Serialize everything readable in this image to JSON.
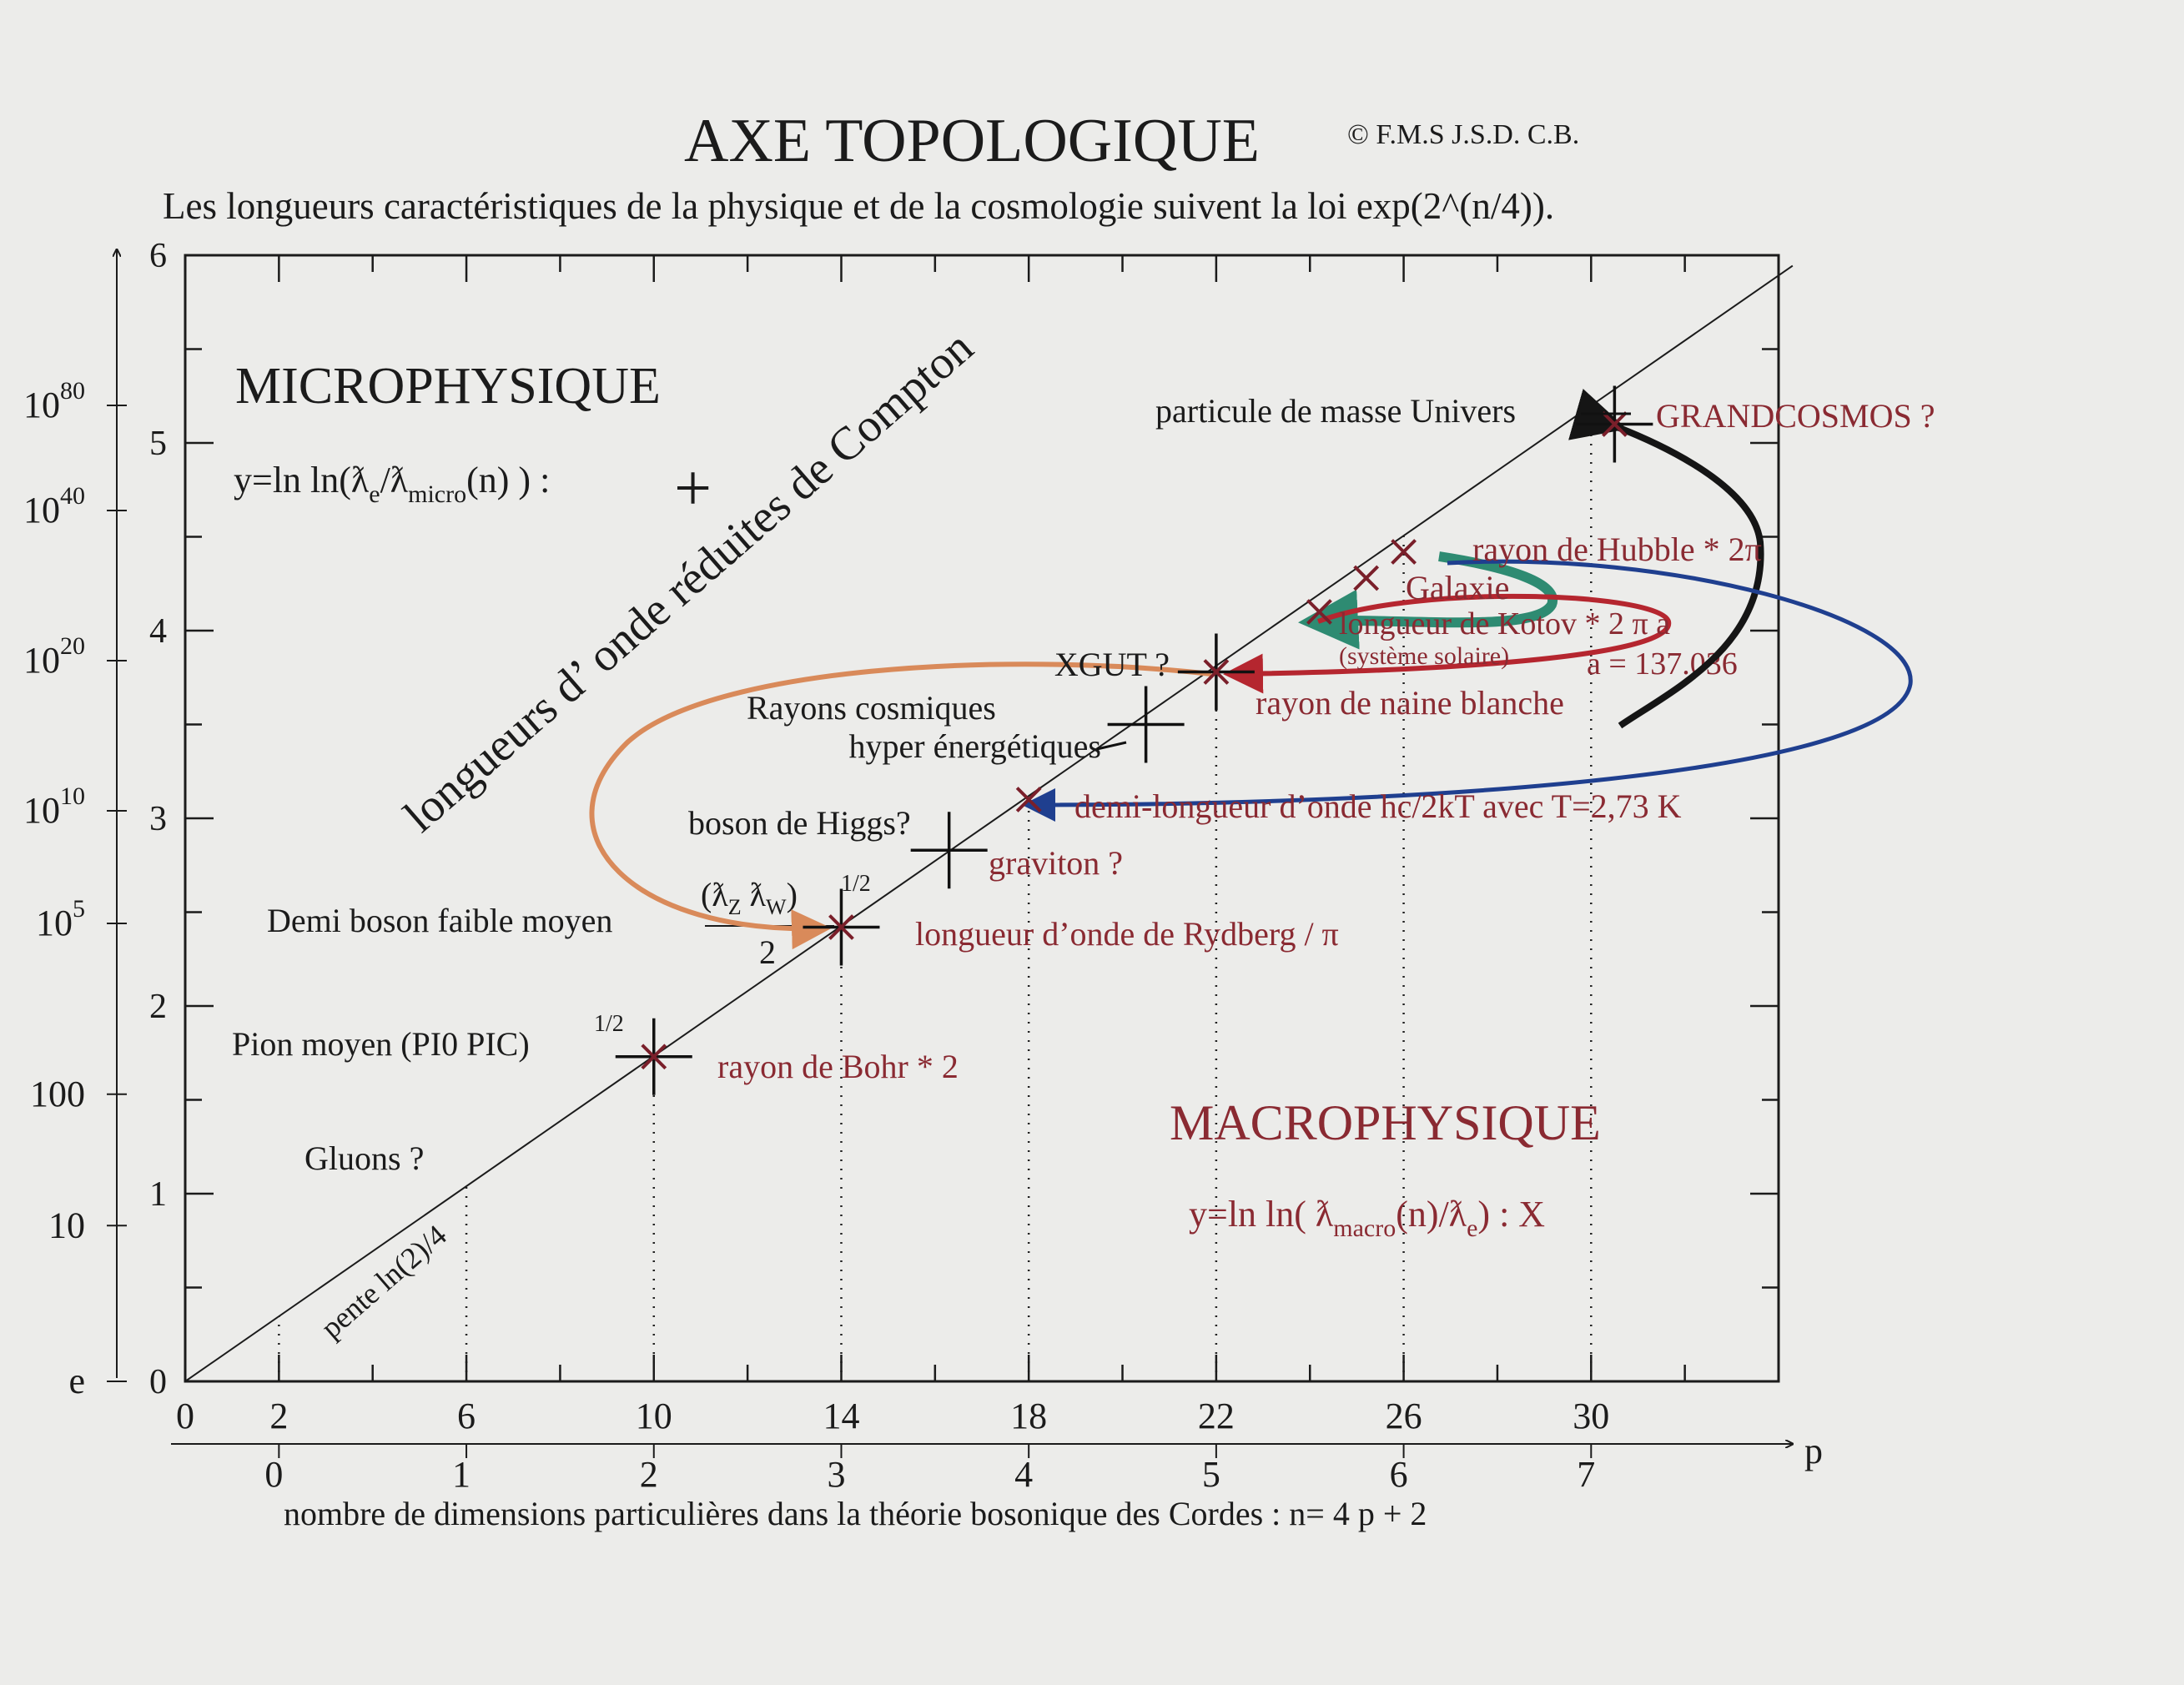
{
  "header": {
    "title": "AXE TOPOLOGIQUE",
    "copyright": "© F.M.S J.S.D. C.B.",
    "subtitle": "Les longueurs caractéristiques de la physique et de la cosmologie  suivent la loi exp(2^(n/4))."
  },
  "regions": {
    "micro_title": "MICROPHYSIQUE",
    "micro_formula_main": "y=ln ln(ƛ",
    "micro_formula_sub1": "e",
    "micro_formula_mid": "/ƛ",
    "micro_formula_sub2": "micro",
    "micro_formula_end": "(n) ) :",
    "micro_symbol": "+",
    "macro_title": "MACROPHYSIQUE",
    "macro_formula_main": "y=ln ln( ƛ",
    "macro_formula_sub1": "macro",
    "macro_formula_mid": "(n)/ƛ",
    "macro_formula_sub2": "e",
    "macro_formula_end": ") : X",
    "diagonal_label": "longueurs d’ onde réduites de Compton",
    "slope_label": "pente ln(2)/4"
  },
  "chart_data": {
    "type": "scatter",
    "xlabel": "nombre de  dimensions particulières dans la théorie bosonique des Cordes  : n= 4 p +  2",
    "xaxis_arrow_label": "p",
    "xlim": [
      0,
      34
    ],
    "ylim": [
      0,
      6
    ],
    "x_ticks_n": [
      "0",
      "2",
      "6",
      "10",
      "14",
      "18",
      "22",
      "26",
      "30"
    ],
    "x_ticks_p": [
      "0",
      "1",
      "2",
      "3",
      "4",
      "5",
      "6",
      "7"
    ],
    "y_ticks": [
      "0",
      "1",
      "2",
      "3",
      "4",
      "5",
      "6"
    ],
    "y_length_ticks": [
      {
        "label": "e",
        "y": 0
      },
      {
        "label": "10",
        "y": 0.83
      },
      {
        "label": "100",
        "y": 1.53
      },
      {
        "label": "10",
        "sup": "5",
        "y": 2.44
      },
      {
        "label": "10",
        "sup": "10",
        "y": 3.04
      },
      {
        "label": "10",
        "sup": "20",
        "y": 3.84
      },
      {
        "label": "10",
        "sup": "40",
        "y": 4.64
      },
      {
        "label": "10",
        "sup": "80",
        "y": 5.2
      }
    ],
    "diagonal_line": {
      "slope": 0.1733,
      "intercept": 0
    },
    "dotted_guides_n": [
      2,
      6,
      10,
      14,
      18,
      22,
      26,
      30
    ],
    "micro_points": [
      {
        "label": "Pion moyen (PI0 PIC)",
        "sup": "1/2",
        "n": 10,
        "y": 1.73
      },
      {
        "label": "Demi boson faible moyen",
        "n": 14,
        "y": 2.42
      },
      {
        "label": "graviton ?",
        "n": 16.3,
        "y": 2.83
      },
      {
        "label": "Rayons cosmiques hyper énergétiques",
        "n": 20.5,
        "y": 3.5
      },
      {
        "label": "XGUT ?",
        "n": 22,
        "y": 3.78
      },
      {
        "label": "particule de masse Univers",
        "n": 30.5,
        "y": 5.1
      }
    ],
    "macro_points": [
      {
        "label": "rayon de Bohr  * 2",
        "n": 10,
        "y": 1.73
      },
      {
        "label": "longueur d’onde de Rydberg / π",
        "n": 14,
        "y": 2.42
      },
      {
        "label": "demi-longueur d’onde hc/2kT avec T=2,73 K",
        "n": 18,
        "y": 3.1
      },
      {
        "label": "rayon de naine blanche",
        "n": 22,
        "y": 3.78
      },
      {
        "label": "longueur de Kotov * 2 π a (système solaire)",
        "n": 24.2,
        "y": 4.1
      },
      {
        "label": "Galaxie",
        "n": 25.2,
        "y": 4.28
      },
      {
        "label": "rayon de Hubble * 2π",
        "n": 26,
        "y": 4.42
      },
      {
        "label": "GRANDCOSMOS ?",
        "n": 30.5,
        "y": 5.1
      }
    ],
    "annotations": {
      "gluons": "Gluons ?",
      "higgs": "boson de Higgs?",
      "weak_num": "(ƛ",
      "weak_sub1": "Z",
      "weak_mid": " ƛ",
      "weak_sub2": "W",
      "weak_end": ")",
      "weak_sup": "1/2",
      "weak_den": "2",
      "kotov_a": "a = 137.036"
    },
    "arrow_colors": {
      "black": "#151515",
      "green": "#2e8b72",
      "red": "#b5262f",
      "blue": "#1f3f8f",
      "orange": "#d98a5a"
    }
  }
}
